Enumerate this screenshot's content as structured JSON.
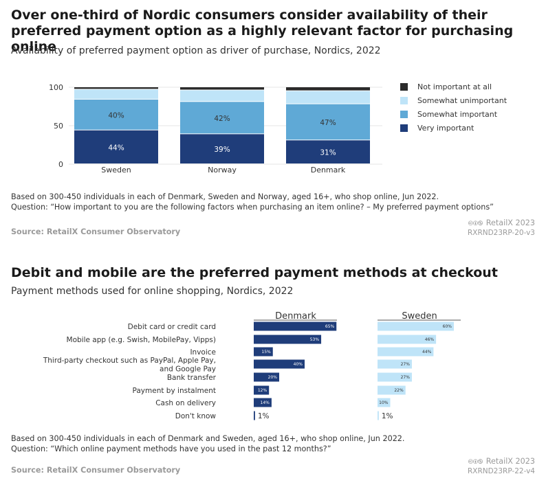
{
  "section1": {
    "title": "Over one-third of Nordic consumers consider availability of their preferred payment option as a highly relevant factor for purchasing online",
    "subtitle": "Availability of preferred payment option as driver of purchase, Nordics, 2022",
    "note_line1": "Based on 300-450 individuals in each of Denmark, Sweden and Norway, aged 16+, who shop online, Jun 2022.",
    "note_line2": "Question: “How important to you are the following factors when purchasing an item online? – My preferred payment options”",
    "source": "Source: RetailX Consumer Observatory",
    "brand": "RetailX 2023",
    "code": "RXRND23RP-20-v3"
  },
  "section2": {
    "title": "Debit and mobile are the preferred payment methods at checkout",
    "subtitle": "Payment methods used for online shopping, Nordics, 2022",
    "note_line1": "Based on 300-450 individuals in each of Denmark and Sweden, aged 16+, who shop online, Jun 2022.",
    "note_line2": "Question: “Which online payment methods have you used in the past 12 months?”",
    "source": "Source: RetailX Consumer Observatory",
    "brand": "RetailX 2023",
    "code": "RXRND23RP-22-v4"
  },
  "cc_icons": "🅭🅯🄏",
  "chart_data": [
    {
      "type": "bar",
      "stacked": true,
      "categories": [
        "Sweden",
        "Norway",
        "Denmark"
      ],
      "ylim": [
        0,
        100
      ],
      "yticks": [
        0,
        50,
        100
      ],
      "series": [
        {
          "name": "Very important",
          "color": "#1f3d7a",
          "values": [
            44,
            39,
            31
          ],
          "labels": [
            "44%",
            "39%",
            "31%"
          ]
        },
        {
          "name": "Somewhat important",
          "color": "#5fa9d6",
          "values": [
            40,
            42,
            47
          ],
          "labels": [
            "40%",
            "42%",
            "47%"
          ]
        },
        {
          "name": "Somewhat unimportant",
          "color": "#bfe4f8",
          "values": [
            13,
            15,
            17
          ]
        },
        {
          "name": "Not important at all",
          "color": "#2b2b2b",
          "values": [
            3,
            4,
            5
          ]
        }
      ],
      "legend_order": [
        "Not important at all",
        "Somewhat unimportant",
        "Somewhat important",
        "Very important"
      ],
      "legend_position": "right"
    },
    {
      "type": "bar",
      "orientation": "horizontal",
      "categories": [
        "Debit card or credit card",
        "Mobile app (e.g. Swish, MobilePay, Vipps)",
        "Invoice",
        "Third-party checkout such as PayPal, Apple Pay, and Google Pay",
        "Bank transfer",
        "Payment by instalment",
        "Cash on delivery",
        "Don't know"
      ],
      "category_lines": [
        [
          "Debit card or credit card"
        ],
        [
          "Mobile app (e.g. Swish, MobilePay, Vipps)"
        ],
        [
          "Invoice"
        ],
        [
          "Third-party checkout such as PayPal, Apple Pay,",
          "and Google Pay"
        ],
        [
          "Bank transfer"
        ],
        [
          "Payment by instalment"
        ],
        [
          "Cash on delivery"
        ],
        [
          "Don't know"
        ]
      ],
      "series": [
        {
          "name": "Denmark",
          "color": "#1f3d7a",
          "values": [
            65,
            53,
            15,
            40,
            20,
            12,
            14,
            1
          ],
          "labels": [
            "65%",
            "53%",
            "15%",
            "40%",
            "20%",
            "12%",
            "14%",
            "1%"
          ]
        },
        {
          "name": "Sweden",
          "color": "#bfe4f8",
          "values": [
            60,
            46,
            44,
            27,
            27,
            22,
            10,
            1
          ],
          "labels": [
            "60%",
            "46%",
            "44%",
            "27%",
            "27%",
            "22%",
            "10%",
            "1%"
          ]
        }
      ],
      "xlim": [
        0,
        100
      ]
    }
  ]
}
